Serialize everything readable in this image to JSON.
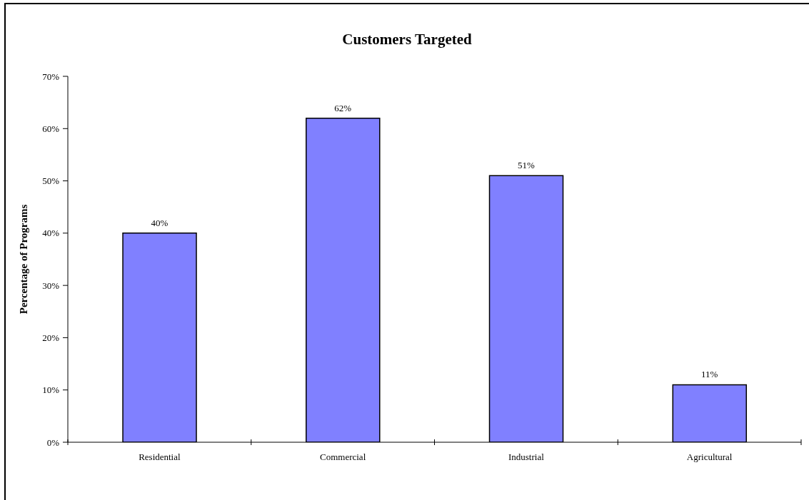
{
  "chart_data": {
    "type": "bar",
    "title": "Customers Targeted",
    "ylabel": "Percentage of Programs",
    "categories": [
      "Residential",
      "Commercial",
      "Industrial",
      "Agricultural"
    ],
    "values": [
      40,
      62,
      51,
      11
    ],
    "value_labels": [
      "40%",
      "62%",
      "51%",
      "11%"
    ],
    "color": "#8080ff",
    "ylim": [
      0,
      70
    ],
    "yticks": [
      {
        "value": 0,
        "label": "0%"
      },
      {
        "value": 10,
        "label": "10%"
      },
      {
        "value": 20,
        "label": "20%"
      },
      {
        "value": 30,
        "label": "30%"
      },
      {
        "value": 40,
        "label": "40%"
      },
      {
        "value": 50,
        "label": "50%"
      },
      {
        "value": 60,
        "label": "60%"
      },
      {
        "value": 70,
        "label": "70%"
      }
    ]
  }
}
